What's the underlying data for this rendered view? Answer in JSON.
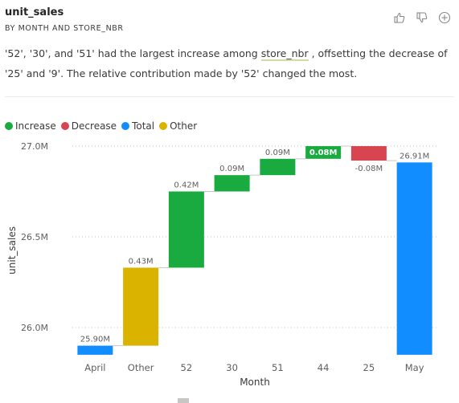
{
  "header": {
    "title": "unit_sales",
    "subtitle": "BY MONTH AND STORE_NBR",
    "like_icon": "thumbs-up-icon",
    "dislike_icon": "thumbs-down-icon",
    "add_icon": "plus-circle-icon"
  },
  "narrative": {
    "part1": "'52', '30', and '51' had the largest increase among ",
    "highlight": "store_nbr",
    "part2": " , offsetting the decrease of '25' and '9'. The relative contribution made by '52' changed the most."
  },
  "legend": {
    "items": [
      {
        "label": "Increase",
        "color": "#1aab40"
      },
      {
        "label": "Decrease",
        "color": "#d64550"
      },
      {
        "label": "Total",
        "color": "#118dff"
      },
      {
        "label": "Other",
        "color": "#d9b300"
      }
    ]
  },
  "chart_data": {
    "type": "waterfall",
    "title": "",
    "xlabel": "Month",
    "ylabel": "unit_sales",
    "ylim": [
      25.85,
      27.02
    ],
    "yticks": [
      26.0,
      26.5,
      27.0
    ],
    "ytick_labels": [
      "26.0M",
      "26.5M",
      "27.0M"
    ],
    "grid": true,
    "categories": [
      "April",
      "Other",
      "52",
      "30",
      "51",
      "44",
      "25",
      "May"
    ],
    "bars": [
      {
        "category": "April",
        "kind": "total",
        "start": 25.85,
        "end": 25.9,
        "label": "25.90M"
      },
      {
        "category": "Other",
        "kind": "other",
        "start": 25.9,
        "end": 26.33,
        "label": "0.43M"
      },
      {
        "category": "52",
        "kind": "increase",
        "start": 26.33,
        "end": 26.75,
        "label": "0.42M"
      },
      {
        "category": "30",
        "kind": "increase",
        "start": 26.75,
        "end": 26.84,
        "label": "0.09M"
      },
      {
        "category": "51",
        "kind": "increase",
        "start": 26.84,
        "end": 26.93,
        "label": "0.09M"
      },
      {
        "category": "44",
        "kind": "increase",
        "start": 26.93,
        "end": 27.0,
        "label": "0.08M"
      },
      {
        "category": "25",
        "kind": "decrease",
        "start": 27.0,
        "end": 26.92,
        "label": "-0.08M"
      },
      {
        "category": "May",
        "kind": "total",
        "start": 25.85,
        "end": 26.91,
        "label": "26.91M"
      }
    ],
    "colors": {
      "increase": "#1aab40",
      "decrease": "#d64550",
      "total": "#118dff",
      "other": "#d9b300"
    }
  }
}
